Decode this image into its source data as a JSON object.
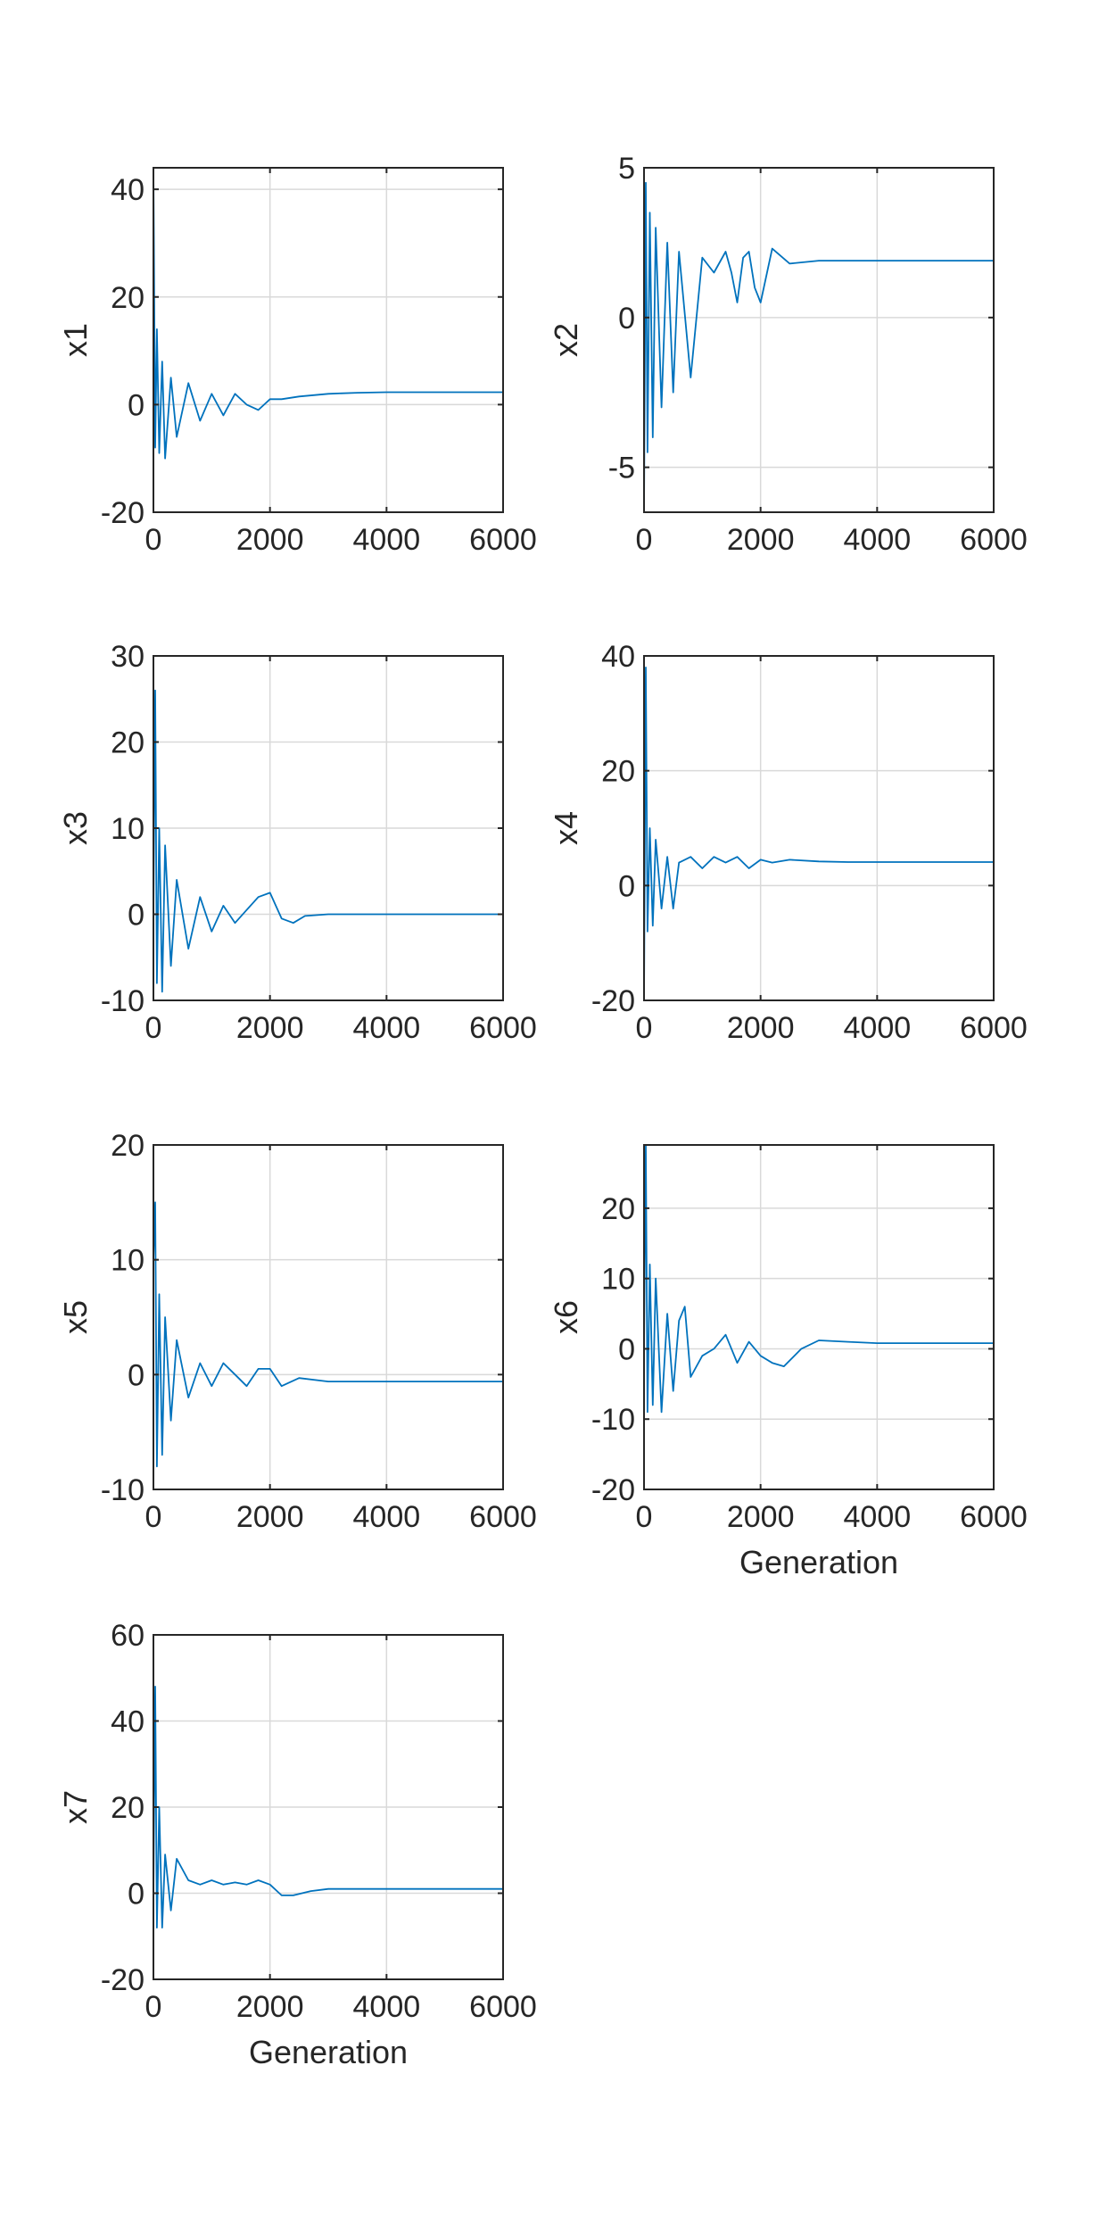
{
  "figure": {
    "background": "#ffffff"
  },
  "chart_data": [
    {
      "type": "line",
      "ylabel": "x1",
      "xlabel": "",
      "xlim": [
        0,
        6000
      ],
      "ylim": [
        -20,
        44
      ],
      "xticks": [
        0,
        2000,
        4000,
        6000
      ],
      "yticks": [
        -20,
        0,
        20,
        40
      ],
      "grid": true,
      "color": "#0072BD",
      "series": [
        {
          "x": [
            0,
            30,
            60,
            100,
            150,
            200,
            300,
            400,
            600,
            800,
            1000,
            1200,
            1400,
            1600,
            1800,
            2000,
            2200,
            2500,
            3000,
            3500,
            4000,
            5000,
            6000
          ],
          "y": [
            44,
            -8,
            14,
            -9,
            8,
            -10,
            5,
            -6,
            4,
            -3,
            2,
            -2,
            2,
            0,
            -1,
            1,
            1,
            1.5,
            2,
            2.2,
            2.3,
            2.3,
            2.3
          ]
        }
      ]
    },
    {
      "type": "line",
      "ylabel": "x2",
      "xlabel": "",
      "xlim": [
        0,
        6000
      ],
      "ylim": [
        -6.5,
        5
      ],
      "xticks": [
        0,
        2000,
        4000,
        6000
      ],
      "yticks": [
        -5,
        0,
        5
      ],
      "grid": true,
      "color": "#0072BD",
      "series": [
        {
          "x": [
            0,
            30,
            60,
            100,
            150,
            200,
            300,
            400,
            500,
            600,
            800,
            1000,
            1200,
            1400,
            1500,
            1600,
            1700,
            1800,
            1900,
            2000,
            2200,
            2500,
            3000,
            3500,
            4000,
            5000,
            6000
          ],
          "y": [
            -6.5,
            4.5,
            -4.5,
            3.5,
            -4,
            3,
            -3,
            2.5,
            -2.5,
            2.2,
            -2,
            2,
            1.5,
            2.2,
            1.5,
            0.5,
            2,
            2.2,
            1,
            0.5,
            2.3,
            1.8,
            1.9,
            1.9,
            1.9,
            1.9,
            1.9
          ]
        }
      ]
    },
    {
      "type": "line",
      "ylabel": "x3",
      "xlabel": "",
      "xlim": [
        0,
        6000
      ],
      "ylim": [
        -10,
        30
      ],
      "xticks": [
        0,
        2000,
        4000,
        6000
      ],
      "yticks": [
        -10,
        0,
        10,
        20,
        30
      ],
      "grid": true,
      "color": "#0072BD",
      "series": [
        {
          "x": [
            0,
            30,
            60,
            100,
            150,
            200,
            300,
            400,
            600,
            800,
            1000,
            1200,
            1400,
            1600,
            1800,
            2000,
            2200,
            2400,
            2600,
            3000,
            4000,
            5000,
            6000
          ],
          "y": [
            0,
            26,
            -8,
            10,
            -9,
            8,
            -6,
            4,
            -4,
            2,
            -2,
            1,
            -1,
            0.5,
            2,
            2.5,
            -0.5,
            -1,
            -0.2,
            0,
            0,
            0,
            0
          ]
        }
      ]
    },
    {
      "type": "line",
      "ylabel": "x4",
      "xlabel": "",
      "xlim": [
        0,
        6000
      ],
      "ylim": [
        -20,
        40
      ],
      "xticks": [
        0,
        2000,
        4000,
        6000
      ],
      "yticks": [
        -20,
        0,
        20,
        40
      ],
      "grid": true,
      "color": "#0072BD",
      "series": [
        {
          "x": [
            0,
            30,
            60,
            100,
            150,
            200,
            300,
            400,
            500,
            600,
            800,
            1000,
            1200,
            1400,
            1600,
            1800,
            2000,
            2200,
            2500,
            3000,
            3500,
            4000,
            5000,
            6000
          ],
          "y": [
            -20,
            38,
            -8,
            10,
            -7,
            8,
            -4,
            5,
            -4,
            4,
            5,
            3,
            5,
            4,
            5,
            3,
            4.5,
            4,
            4.5,
            4.2,
            4.1,
            4.1,
            4.1,
            4.1
          ]
        }
      ]
    },
    {
      "type": "line",
      "ylabel": "x5",
      "xlabel": "",
      "xlim": [
        0,
        6000
      ],
      "ylim": [
        -10,
        20
      ],
      "xticks": [
        0,
        2000,
        4000,
        6000
      ],
      "yticks": [
        -10,
        0,
        10,
        20
      ],
      "grid": true,
      "color": "#0072BD",
      "series": [
        {
          "x": [
            0,
            30,
            60,
            100,
            150,
            200,
            300,
            400,
            600,
            800,
            1000,
            1200,
            1400,
            1600,
            1800,
            2000,
            2200,
            2500,
            3000,
            4000,
            5000,
            6000
          ],
          "y": [
            10,
            15,
            -8,
            7,
            -7,
            5,
            -4,
            3,
            -2,
            1,
            -1,
            1,
            0,
            -1,
            0.5,
            0.5,
            -1,
            -0.3,
            -0.6,
            -0.6,
            -0.6,
            -0.6
          ]
        }
      ]
    },
    {
      "type": "line",
      "ylabel": "x6",
      "xlabel": "Generation",
      "xlim": [
        0,
        6000
      ],
      "ylim": [
        -20,
        29
      ],
      "xticks": [
        0,
        2000,
        4000,
        6000
      ],
      "yticks": [
        -20,
        -10,
        0,
        10,
        20
      ],
      "grid": true,
      "color": "#0072BD",
      "series": [
        {
          "x": [
            0,
            30,
            60,
            100,
            150,
            200,
            300,
            400,
            500,
            600,
            700,
            800,
            1000,
            1200,
            1400,
            1600,
            1800,
            2000,
            2200,
            2400,
            2700,
            3000,
            3500,
            4000,
            5000,
            6000
          ],
          "y": [
            0,
            29,
            -9,
            12,
            -8,
            10,
            -9,
            5,
            -6,
            4,
            6,
            -4,
            -1,
            0,
            2,
            -2,
            1,
            -1,
            -2,
            -2.5,
            0,
            1.2,
            1,
            0.8,
            0.8,
            0.8
          ]
        }
      ]
    },
    {
      "type": "line",
      "ylabel": "x7",
      "xlabel": "Generation",
      "xlim": [
        0,
        6000
      ],
      "ylim": [
        -20,
        60
      ],
      "xticks": [
        0,
        2000,
        4000,
        6000
      ],
      "yticks": [
        -20,
        0,
        20,
        40,
        60
      ],
      "grid": true,
      "color": "#0072BD",
      "series": [
        {
          "x": [
            0,
            30,
            60,
            100,
            150,
            200,
            300,
            400,
            600,
            800,
            1000,
            1200,
            1400,
            1600,
            1800,
            2000,
            2200,
            2400,
            2700,
            3000,
            4000,
            5000,
            6000
          ],
          "y": [
            0,
            48,
            -8,
            20,
            -8,
            9,
            -4,
            8,
            3,
            2,
            3,
            2,
            2.5,
            2,
            3,
            2,
            -0.5,
            -0.5,
            0.5,
            1,
            1,
            1,
            1
          ]
        }
      ]
    }
  ]
}
